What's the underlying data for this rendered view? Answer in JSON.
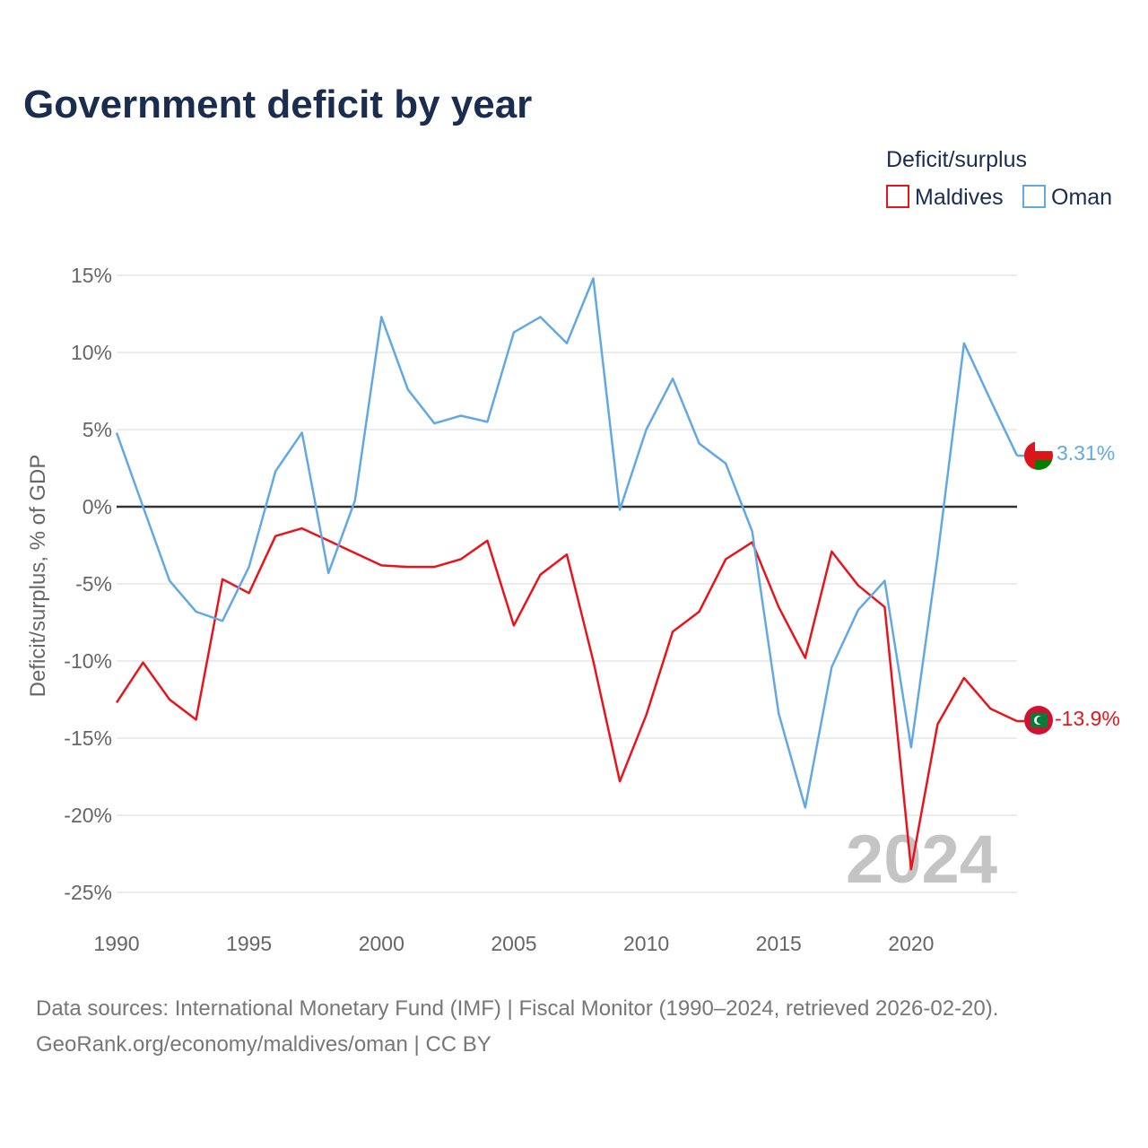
{
  "title": "Government deficit by year",
  "legend": {
    "title": "Deficit/surplus",
    "items": [
      {
        "label": "Maldives",
        "color": "#e8141b"
      },
      {
        "label": "Oman",
        "color": "#62a8e5"
      }
    ]
  },
  "watermark_year": "2024",
  "source": {
    "line1": "Data sources: International Monetary Fund (IMF) | Fiscal Monitor (1990–2024, retrieved 2026-02-20).",
    "line2": "GeoRank.org/economy/maldives/oman | CC BY"
  },
  "chart_data": {
    "type": "line",
    "title": "Government deficit by year",
    "xlabel": "",
    "ylabel": "Deficit/surplus, % of GDP",
    "xlim": [
      1990,
      2024
    ],
    "ylim": [
      -25,
      15
    ],
    "x_ticks": [
      1990,
      1995,
      2000,
      2005,
      2010,
      2015,
      2020
    ],
    "x_tick_labels": [
      "1990",
      "1995",
      "2000",
      "2005",
      "2010",
      "2015",
      "2020"
    ],
    "y_ticks": [
      15,
      10,
      5,
      0,
      -5,
      -10,
      -15,
      -20,
      -25
    ],
    "y_tick_labels": [
      "15%",
      "10%",
      "5%",
      "0%",
      "-5%",
      "-10%",
      "-15%",
      "-20%",
      "-25%"
    ],
    "x": [
      1990,
      1991,
      1992,
      1993,
      1994,
      1995,
      1996,
      1997,
      1998,
      1999,
      2000,
      2001,
      2002,
      2003,
      2004,
      2005,
      2006,
      2007,
      2008,
      2009,
      2010,
      2011,
      2012,
      2013,
      2014,
      2015,
      2016,
      2017,
      2018,
      2019,
      2020,
      2021,
      2022,
      2023,
      2024
    ],
    "series": [
      {
        "name": "Maldives",
        "color": "#e8141b",
        "end_label": "-13.9%",
        "values": [
          -12.7,
          -10.1,
          -12.5,
          -13.8,
          -4.7,
          -5.6,
          -1.9,
          -1.4,
          -2.2,
          -3.0,
          -3.8,
          -3.9,
          -3.9,
          -3.4,
          -2.2,
          -7.7,
          -4.4,
          -3.1,
          -10.0,
          -17.8,
          -13.5,
          -8.1,
          -6.8,
          -3.4,
          -2.3,
          -6.5,
          -9.8,
          -2.9,
          -5.1,
          -6.5,
          -23.5,
          -14.1,
          -11.1,
          -13.1,
          -13.9
        ]
      },
      {
        "name": "Oman",
        "color": "#62a8e5",
        "end_label": "3.31%",
        "values": [
          4.8,
          0.0,
          -4.8,
          -6.8,
          -7.4,
          -3.9,
          2.3,
          4.8,
          -4.3,
          0.4,
          12.3,
          7.6,
          5.4,
          5.9,
          5.5,
          11.3,
          12.3,
          10.6,
          14.8,
          -0.2,
          5.0,
          8.3,
          4.1,
          2.8,
          -1.6,
          -13.4,
          -19.5,
          -10.4,
          -6.7,
          -4.8,
          -15.6,
          -3.2,
          10.6,
          6.9,
          3.31
        ]
      }
    ]
  }
}
